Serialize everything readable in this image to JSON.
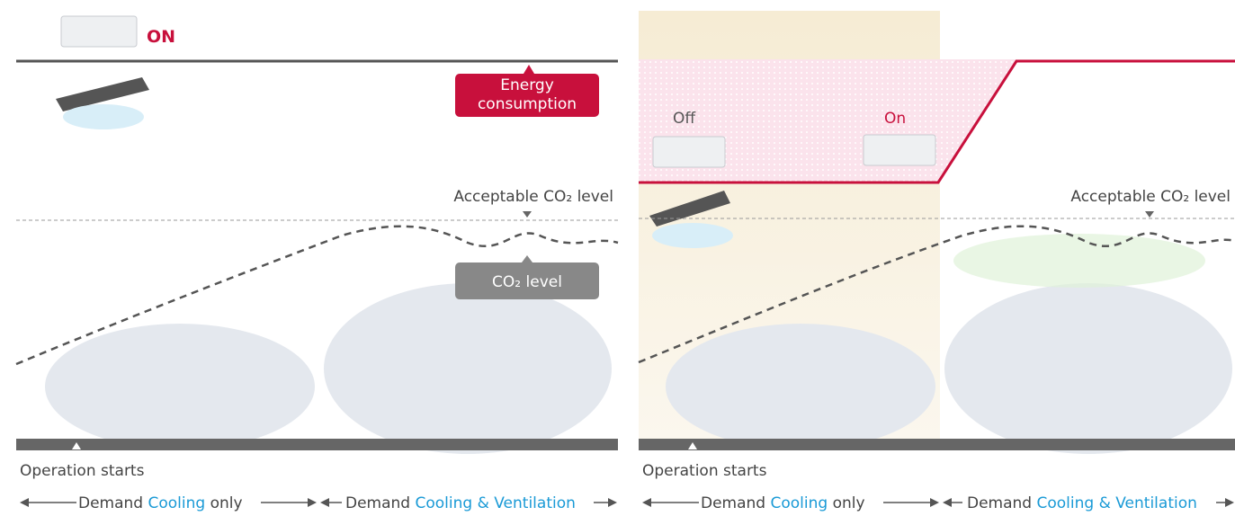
{
  "panels": [
    {
      "status": "ON",
      "energy_label": "Energy consumption",
      "acceptable_label": "Acceptable CO₂ level",
      "co2_label": "CO₂ level",
      "start_label": "Operation starts",
      "phases": [
        {
          "prefix": "Demand",
          "highlight": "Cooling",
          "suffix": "only"
        },
        {
          "prefix": "Demand",
          "highlight": "Cooling & Ventilation"
        }
      ]
    },
    {
      "off_label": "Off",
      "on_label": "On",
      "acceptable_label": "Acceptable CO₂ level",
      "start_label": "Operation starts",
      "phases": [
        {
          "prefix": "Demand",
          "highlight": "Cooling",
          "suffix": "only"
        },
        {
          "prefix": "Demand",
          "highlight": "Cooling & Ventilation"
        }
      ]
    }
  ]
}
